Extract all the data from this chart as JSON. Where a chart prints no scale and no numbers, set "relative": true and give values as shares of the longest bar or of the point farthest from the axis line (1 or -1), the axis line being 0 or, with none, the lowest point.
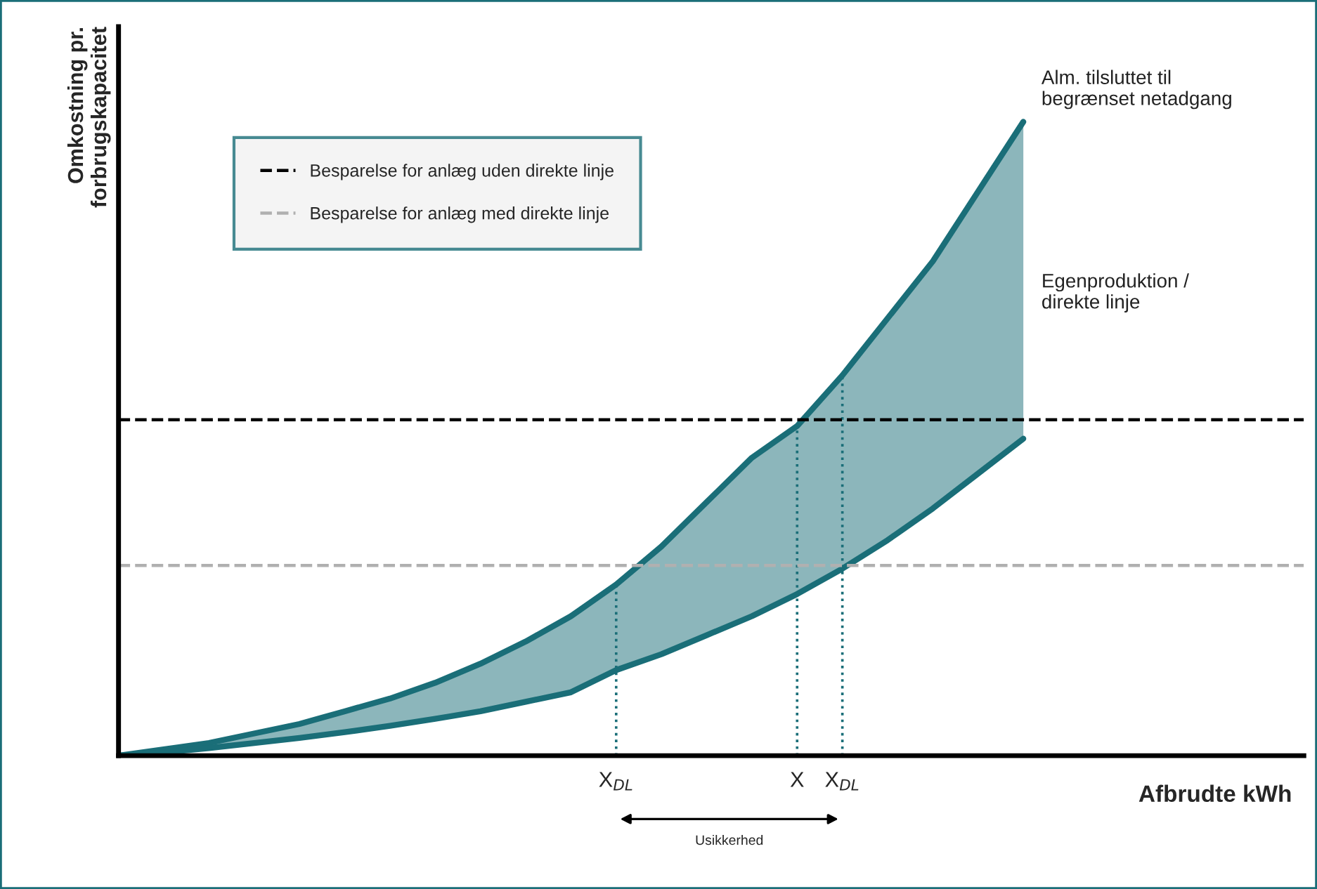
{
  "chart_data": {
    "type": "line",
    "relative": true,
    "xlabel": "Afbrudte kWh",
    "ylabel": "Omkostning pr.\nforbrugskapacitet",
    "categories": [
      null,
      null,
      null,
      null,
      null,
      null,
      null,
      null,
      null,
      null,
      null,
      "X$_{DL}$",
      null,
      null,
      null,
      "X",
      "X$_{DL}$",
      null,
      null,
      null,
      null
    ],
    "series": [
      {
        "name": "Alm. tilsluttet til\nbegrænset netadgang",
        "color": "#1a6e78",
        "values": [
          0,
          0.01,
          0.02,
          0.035,
          0.05,
          0.07,
          0.09,
          0.115,
          0.145,
          0.18,
          0.22,
          0.27,
          0.33,
          0.4,
          0.47,
          0.52,
          0.6,
          0.69,
          0.78,
          0.89,
          1.0
        ],
        "lower": [
          0,
          0.005,
          0.012,
          0.02,
          0.028,
          0.037,
          0.047,
          0.058,
          0.07,
          0.085,
          0.1,
          0.135,
          0.16,
          0.19,
          0.22,
          0.255,
          0.295,
          0.34,
          0.39,
          0.445,
          0.5
        ],
        "upper": [
          0,
          0.01,
          0.02,
          0.035,
          0.05,
          0.07,
          0.09,
          0.115,
          0.145,
          0.18,
          0.22,
          0.27,
          0.33,
          0.4,
          0.47,
          0.52,
          0.6,
          0.69,
          0.78,
          0.89,
          1.0
        ]
      },
      {
        "name": "Egenproduktion /\ndirekte linje",
        "color": "#1a6e78",
        "values": [
          0,
          0.005,
          0.012,
          0.02,
          0.028,
          0.037,
          0.047,
          0.058,
          0.07,
          0.085,
          0.1,
          0.135,
          0.16,
          0.19,
          0.22,
          0.255,
          0.295,
          0.34,
          0.39,
          0.445,
          0.5
        ]
      }
    ],
    "ref_lines": [
      {
        "axis": "y",
        "value": 0.53,
        "label": "Besparelse for anlæg uden direkte linje",
        "color": "#000000",
        "line_style": "dashed"
      },
      {
        "axis": "y",
        "value": 0.3,
        "label": "Besparelse for anlæg med direkte linje",
        "color": "#b0b0b0",
        "line_style": "dashed"
      }
    ],
    "annotations": [
      "Usikkerhed"
    ],
    "legend": "top left",
    "tick_labels": "x",
    "marker": "none",
    "line_style": "solid"
  }
}
